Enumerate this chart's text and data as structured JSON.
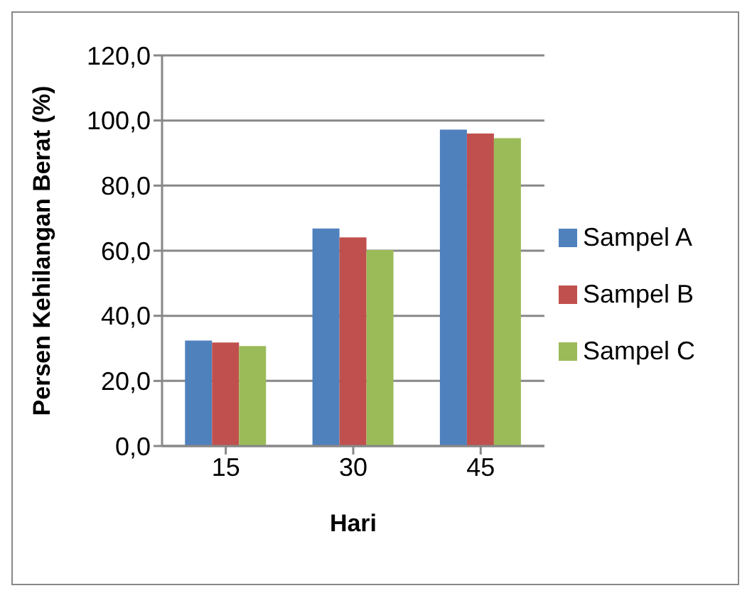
{
  "chart_data": {
    "type": "bar",
    "xlabel": "Hari",
    "ylabel": "Persen Kehilangan Berat (%)",
    "categories": [
      "15",
      "30",
      "45"
    ],
    "series": [
      {
        "name": "Sampel A",
        "color": "#4f81bd",
        "values": [
          32.4,
          66.8,
          97.2
        ]
      },
      {
        "name": "Sampel B",
        "color": "#c0504d",
        "values": [
          31.8,
          64.1,
          96.0
        ]
      },
      {
        "name": "Sampel C",
        "color": "#9bbb59",
        "values": [
          30.7,
          60.2,
          94.6
        ]
      }
    ],
    "ylim": [
      0,
      120
    ],
    "yticks": [
      {
        "value": 0,
        "label": "0,0"
      },
      {
        "value": 20,
        "label": "20,0"
      },
      {
        "value": 40,
        "label": "40,0"
      },
      {
        "value": 60,
        "label": "60,0"
      },
      {
        "value": 80,
        "label": "80,0"
      },
      {
        "value": 100,
        "label": "100,0"
      },
      {
        "value": 120,
        "label": "120,0"
      }
    ],
    "grid": "y",
    "legend": "right"
  }
}
